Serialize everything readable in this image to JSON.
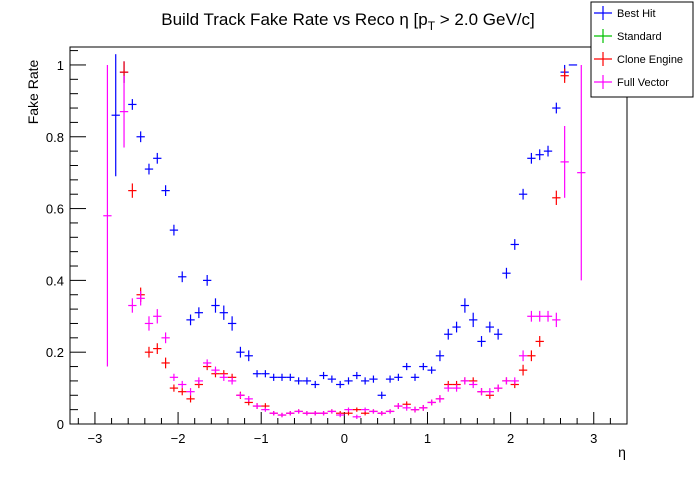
{
  "chart_data": {
    "type": "scatter",
    "title": "Build Track Fake Rate vs Reco η [p",
    "title_sub": "T",
    "title_tail": " > 2.0 GeV/c]",
    "xlabel": "η",
    "ylabel": "Fake Rate",
    "xlim": [
      -3.3,
      3.4
    ],
    "ylim": [
      0,
      1.05
    ],
    "xticks": [
      -3,
      -2,
      -1,
      0,
      1,
      2,
      3
    ],
    "xtick_labels": [
      "−3",
      "−2",
      "−1",
      "0",
      "1",
      "2",
      "3"
    ],
    "yticks": [
      0,
      0.2,
      0.4,
      0.6,
      0.8,
      1
    ],
    "ytick_labels": [
      "0",
      "0.2",
      "0.4",
      "0.6",
      "0.8",
      "1"
    ],
    "bin_halfwidth": 0.05,
    "legend_position": "top-right",
    "series": [
      {
        "name": "Best Hit",
        "color": "#0000ff",
        "points": [
          [
            -2.75,
            0.86,
            0.17
          ],
          [
            -2.65,
            0.98,
            0.03
          ],
          [
            -2.55,
            0.89,
            0.015
          ],
          [
            -2.45,
            0.8,
            0.015
          ],
          [
            -2.35,
            0.71,
            0.015
          ],
          [
            -2.25,
            0.74,
            0.015
          ],
          [
            -2.15,
            0.65,
            0.015
          ],
          [
            -2.05,
            0.54,
            0.015
          ],
          [
            -1.95,
            0.41,
            0.015
          ],
          [
            -1.85,
            0.29,
            0.015
          ],
          [
            -1.75,
            0.31,
            0.015
          ],
          [
            -1.65,
            0.4,
            0.015
          ],
          [
            -1.55,
            0.33,
            0.02
          ],
          [
            -1.45,
            0.31,
            0.02
          ],
          [
            -1.35,
            0.28,
            0.02
          ],
          [
            -1.25,
            0.2,
            0.015
          ],
          [
            -1.15,
            0.19,
            0.015
          ],
          [
            -1.05,
            0.14,
            0.01
          ],
          [
            -0.95,
            0.14,
            0.01
          ],
          [
            -0.85,
            0.13,
            0.01
          ],
          [
            -0.75,
            0.13,
            0.01
          ],
          [
            -0.65,
            0.13,
            0.01
          ],
          [
            -0.55,
            0.12,
            0.01
          ],
          [
            -0.45,
            0.12,
            0.01
          ],
          [
            -0.35,
            0.11,
            0.01
          ],
          [
            -0.25,
            0.135,
            0.01
          ],
          [
            -0.15,
            0.125,
            0.01
          ],
          [
            -0.05,
            0.11,
            0.01
          ],
          [
            0.05,
            0.12,
            0.01
          ],
          [
            0.15,
            0.135,
            0.01
          ],
          [
            0.25,
            0.12,
            0.01
          ],
          [
            0.35,
            0.125,
            0.01
          ],
          [
            0.45,
            0.08,
            0.01
          ],
          [
            0.55,
            0.125,
            0.01
          ],
          [
            0.65,
            0.13,
            0.01
          ],
          [
            0.75,
            0.16,
            0.01
          ],
          [
            0.85,
            0.13,
            0.01
          ],
          [
            0.95,
            0.16,
            0.01
          ],
          [
            1.05,
            0.15,
            0.01
          ],
          [
            1.15,
            0.19,
            0.015
          ],
          [
            1.25,
            0.25,
            0.015
          ],
          [
            1.35,
            0.27,
            0.015
          ],
          [
            1.45,
            0.33,
            0.02
          ],
          [
            1.55,
            0.29,
            0.02
          ],
          [
            1.65,
            0.23,
            0.015
          ],
          [
            1.75,
            0.27,
            0.015
          ],
          [
            1.85,
            0.25,
            0.015
          ],
          [
            1.95,
            0.42,
            0.015
          ],
          [
            2.05,
            0.5,
            0.015
          ],
          [
            2.15,
            0.64,
            0.015
          ],
          [
            2.25,
            0.74,
            0.015
          ],
          [
            2.35,
            0.75,
            0.015
          ],
          [
            2.45,
            0.76,
            0.015
          ],
          [
            2.55,
            0.88,
            0.015
          ],
          [
            2.65,
            0.98,
            0.02
          ],
          [
            2.75,
            1.0,
            0.0
          ]
        ]
      },
      {
        "name": "Standard",
        "color": "#00c000",
        "points": []
      },
      {
        "name": "Clone Engine",
        "color": "#ff0000",
        "points": [
          [
            -2.65,
            0.98,
            0.03
          ],
          [
            -2.55,
            0.65,
            0.02
          ],
          [
            -2.45,
            0.36,
            0.02
          ],
          [
            -2.35,
            0.2,
            0.015
          ],
          [
            -2.25,
            0.21,
            0.015
          ],
          [
            -2.15,
            0.17,
            0.015
          ],
          [
            -2.05,
            0.1,
            0.01
          ],
          [
            -1.95,
            0.09,
            0.01
          ],
          [
            -1.85,
            0.07,
            0.01
          ],
          [
            -1.75,
            0.11,
            0.01
          ],
          [
            -1.65,
            0.16,
            0.01
          ],
          [
            -1.55,
            0.14,
            0.01
          ],
          [
            -1.45,
            0.14,
            0.01
          ],
          [
            -1.35,
            0.13,
            0.01
          ],
          [
            -1.25,
            0.08,
            0.01
          ],
          [
            -1.15,
            0.06,
            0.008
          ],
          [
            -1.05,
            0.05,
            0.008
          ],
          [
            -0.95,
            0.05,
            0.008
          ],
          [
            -0.85,
            0.03,
            0.006
          ],
          [
            -0.75,
            0.025,
            0.006
          ],
          [
            -0.65,
            0.03,
            0.006
          ],
          [
            -0.55,
            0.035,
            0.006
          ],
          [
            -0.45,
            0.03,
            0.006
          ],
          [
            -0.35,
            0.03,
            0.006
          ],
          [
            -0.25,
            0.03,
            0.006
          ],
          [
            -0.15,
            0.035,
            0.006
          ],
          [
            -0.05,
            0.03,
            0.006
          ],
          [
            0.05,
            0.03,
            0.006
          ],
          [
            0.15,
            0.04,
            0.006
          ],
          [
            0.25,
            0.03,
            0.006
          ],
          [
            0.35,
            0.035,
            0.006
          ],
          [
            0.45,
            0.03,
            0.006
          ],
          [
            0.55,
            0.035,
            0.006
          ],
          [
            0.65,
            0.05,
            0.008
          ],
          [
            0.75,
            0.055,
            0.008
          ],
          [
            0.85,
            0.04,
            0.008
          ],
          [
            0.95,
            0.045,
            0.008
          ],
          [
            1.05,
            0.06,
            0.008
          ],
          [
            1.15,
            0.07,
            0.01
          ],
          [
            1.25,
            0.11,
            0.01
          ],
          [
            1.35,
            0.11,
            0.01
          ],
          [
            1.45,
            0.12,
            0.01
          ],
          [
            1.55,
            0.12,
            0.01
          ],
          [
            1.65,
            0.09,
            0.01
          ],
          [
            1.75,
            0.08,
            0.01
          ],
          [
            1.85,
            0.1,
            0.01
          ],
          [
            1.95,
            0.12,
            0.01
          ],
          [
            2.05,
            0.11,
            0.01
          ],
          [
            2.15,
            0.15,
            0.015
          ],
          [
            2.25,
            0.19,
            0.015
          ],
          [
            2.35,
            0.23,
            0.015
          ],
          [
            2.55,
            0.63,
            0.02
          ],
          [
            2.65,
            0.97,
            0.02
          ]
        ]
      },
      {
        "name": "Full Vector",
        "color": "#ff00ff",
        "points": [
          [
            -2.85,
            0.58,
            0.42
          ],
          [
            -2.65,
            0.87,
            0.1
          ],
          [
            -2.55,
            0.33,
            0.02
          ],
          [
            -2.45,
            0.35,
            0.02
          ],
          [
            -2.35,
            0.28,
            0.02
          ],
          [
            -2.25,
            0.3,
            0.02
          ],
          [
            -2.15,
            0.24,
            0.015
          ],
          [
            -2.05,
            0.13,
            0.01
          ],
          [
            -1.95,
            0.11,
            0.01
          ],
          [
            -1.85,
            0.09,
            0.01
          ],
          [
            -1.75,
            0.12,
            0.01
          ],
          [
            -1.65,
            0.17,
            0.01
          ],
          [
            -1.55,
            0.15,
            0.01
          ],
          [
            -1.45,
            0.13,
            0.01
          ],
          [
            -1.35,
            0.12,
            0.01
          ],
          [
            -1.25,
            0.08,
            0.008
          ],
          [
            -1.15,
            0.07,
            0.008
          ],
          [
            -1.05,
            0.05,
            0.008
          ],
          [
            -0.95,
            0.04,
            0.006
          ],
          [
            -0.85,
            0.03,
            0.006
          ],
          [
            -0.75,
            0.025,
            0.006
          ],
          [
            -0.65,
            0.03,
            0.006
          ],
          [
            -0.55,
            0.035,
            0.006
          ],
          [
            -0.45,
            0.03,
            0.006
          ],
          [
            -0.35,
            0.03,
            0.006
          ],
          [
            -0.25,
            0.03,
            0.006
          ],
          [
            -0.15,
            0.035,
            0.006
          ],
          [
            -0.05,
            0.025,
            0.006
          ],
          [
            0.05,
            0.04,
            0.006
          ],
          [
            0.15,
            0.02,
            0.006
          ],
          [
            0.25,
            0.04,
            0.006
          ],
          [
            0.35,
            0.035,
            0.006
          ],
          [
            0.45,
            0.03,
            0.006
          ],
          [
            0.55,
            0.035,
            0.006
          ],
          [
            0.65,
            0.05,
            0.008
          ],
          [
            0.75,
            0.045,
            0.008
          ],
          [
            0.85,
            0.04,
            0.008
          ],
          [
            0.95,
            0.045,
            0.008
          ],
          [
            1.05,
            0.06,
            0.008
          ],
          [
            1.15,
            0.07,
            0.01
          ],
          [
            1.25,
            0.1,
            0.01
          ],
          [
            1.35,
            0.1,
            0.01
          ],
          [
            1.45,
            0.12,
            0.01
          ],
          [
            1.55,
            0.11,
            0.01
          ],
          [
            1.65,
            0.09,
            0.01
          ],
          [
            1.75,
            0.09,
            0.01
          ],
          [
            1.85,
            0.1,
            0.01
          ],
          [
            1.95,
            0.12,
            0.01
          ],
          [
            2.05,
            0.12,
            0.01
          ],
          [
            2.15,
            0.19,
            0.015
          ],
          [
            2.25,
            0.3,
            0.015
          ],
          [
            2.35,
            0.3,
            0.015
          ],
          [
            2.45,
            0.3,
            0.015
          ],
          [
            2.55,
            0.29,
            0.02
          ],
          [
            2.65,
            0.73,
            0.1
          ],
          [
            2.85,
            0.7,
            0.3
          ]
        ]
      }
    ]
  }
}
